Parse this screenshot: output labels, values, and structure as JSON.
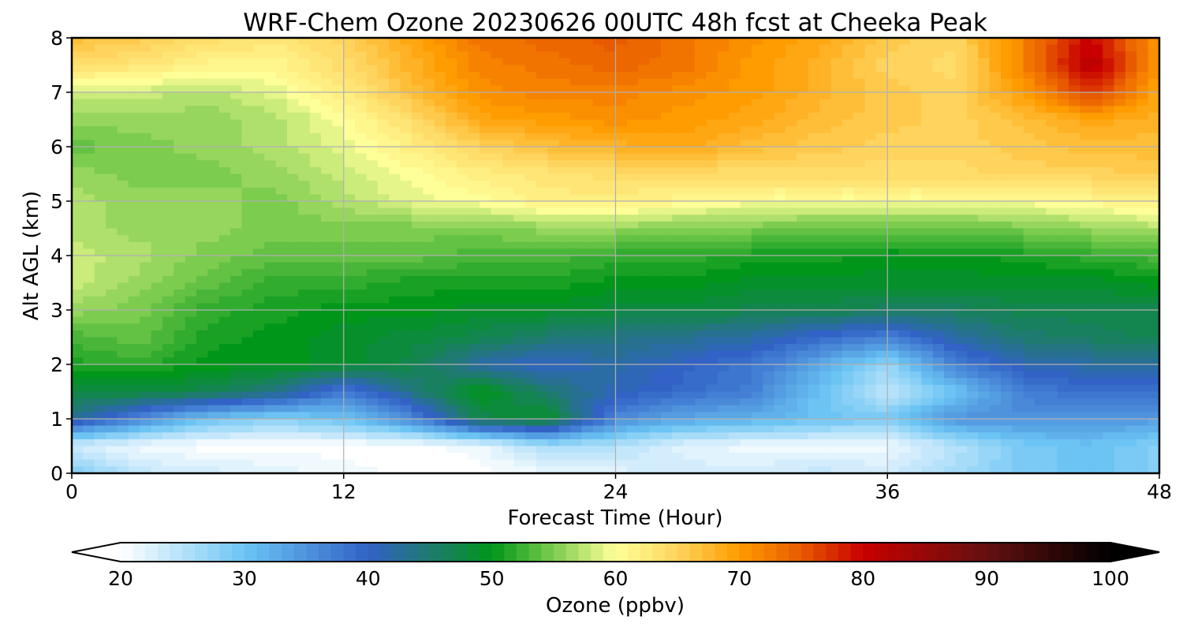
{
  "chart_data": {
    "type": "heatmap",
    "title": "WRF-Chem Ozone  20230626 00UTC 48h fcst at Cheeka Peak",
    "xlabel": "Forecast Time (Hour)",
    "ylabel": "Alt AGL (km)",
    "xlim": [
      0,
      48
    ],
    "ylim": [
      0,
      8
    ],
    "x_ticks": [
      0,
      12,
      24,
      36,
      48
    ],
    "y_ticks": [
      0,
      1,
      2,
      3,
      4,
      5,
      6,
      7,
      8
    ],
    "grid": true,
    "x_hours": [
      0,
      3,
      6,
      9,
      12,
      15,
      18,
      21,
      24,
      27,
      30,
      33,
      36,
      39,
      42,
      45,
      48
    ],
    "y_km": [
      0,
      0.5,
      1,
      1.5,
      2,
      2.5,
      3,
      3.5,
      4,
      4.5,
      5,
      5.5,
      6,
      6.5,
      7,
      7.5,
      8
    ],
    "ozone_ppbv": [
      [
        29,
        24,
        23,
        22,
        21,
        20,
        20,
        21,
        22,
        23,
        23,
        24,
        23,
        26,
        29,
        30,
        28
      ],
      [
        23,
        21,
        20,
        20,
        20,
        20,
        21,
        26,
        25,
        22,
        21,
        21,
        21,
        25,
        29,
        30,
        28
      ],
      [
        43,
        36,
        30,
        28,
        30,
        36,
        47,
        49,
        36,
        33,
        32,
        30,
        29,
        35,
        35,
        35,
        34
      ],
      [
        48,
        48,
        47,
        44,
        37,
        44,
        50,
        45,
        41,
        39,
        37,
        30,
        24,
        30,
        37,
        39,
        39
      ],
      [
        51,
        52,
        50,
        50,
        49,
        47,
        42,
        40,
        42,
        40,
        38,
        33,
        27,
        37,
        41,
        42,
        42
      ],
      [
        53,
        54,
        51,
        50,
        49,
        48,
        47,
        45,
        44,
        43,
        42,
        39,
        37,
        42,
        45,
        46,
        47
      ],
      [
        56,
        55,
        52,
        51,
        50,
        50,
        49,
        49,
        48,
        48,
        47,
        47,
        46,
        46,
        47,
        47,
        47
      ],
      [
        58,
        56,
        54,
        52,
        52,
        51,
        51,
        51,
        50,
        50,
        49,
        49,
        49,
        49,
        49,
        49,
        50
      ],
      [
        58,
        57,
        55,
        54,
        54,
        54,
        53,
        53,
        52,
        52,
        51,
        51,
        50,
        50,
        51,
        52,
        53
      ],
      [
        57,
        56,
        56,
        55,
        55,
        55,
        55,
        56,
        56,
        55,
        55,
        54,
        54,
        54,
        55,
        56,
        57
      ],
      [
        57,
        56,
        56,
        55,
        57,
        59,
        60,
        62,
        62,
        61,
        60,
        60,
        60,
        60,
        60,
        61,
        62
      ],
      [
        56,
        55,
        55,
        56,
        58,
        60,
        62,
        63,
        64,
        64,
        64,
        64,
        64,
        64,
        65,
        65,
        66
      ],
      [
        54,
        55,
        56,
        57,
        59,
        62,
        65,
        67,
        68,
        69,
        67,
        66,
        65,
        65,
        66,
        67,
        67
      ],
      [
        56,
        56,
        56,
        57,
        60,
        64,
        69,
        70,
        71,
        70,
        69,
        67,
        66,
        65,
        67,
        69,
        68
      ],
      [
        58,
        58,
        57,
        59,
        62,
        67,
        71,
        72,
        72,
        71,
        70,
        68,
        66,
        65,
        70,
        77,
        69
      ],
      [
        64,
        63,
        61,
        61,
        64,
        68,
        72,
        73,
        74,
        73,
        70,
        68,
        65,
        64,
        72,
        82,
        70
      ],
      [
        67,
        66,
        64,
        63,
        65,
        69,
        73,
        74,
        75,
        73,
        71,
        69,
        66,
        65,
        72,
        80,
        70
      ]
    ],
    "colorbar": {
      "label": "Ozone  (ppbv)",
      "min": 20,
      "max": 100,
      "ticks": [
        20,
        30,
        40,
        50,
        60,
        70,
        80,
        90,
        100
      ],
      "extend": "both",
      "stops": [
        {
          "v": 20,
          "c": "#ffffff"
        },
        {
          "v": 30,
          "c": "#6bc4f4"
        },
        {
          "v": 40,
          "c": "#3262c6"
        },
        {
          "v": 45,
          "c": "#1f7a70"
        },
        {
          "v": 50,
          "c": "#00961a"
        },
        {
          "v": 55,
          "c": "#7ccc4e"
        },
        {
          "v": 60,
          "c": "#ffff99"
        },
        {
          "v": 65,
          "c": "#ffd45e"
        },
        {
          "v": 70,
          "c": "#ff9c00"
        },
        {
          "v": 75,
          "c": "#e85a00"
        },
        {
          "v": 80,
          "c": "#c80000"
        },
        {
          "v": 90,
          "c": "#641010"
        },
        {
          "v": 100,
          "c": "#000000"
        }
      ]
    }
  }
}
